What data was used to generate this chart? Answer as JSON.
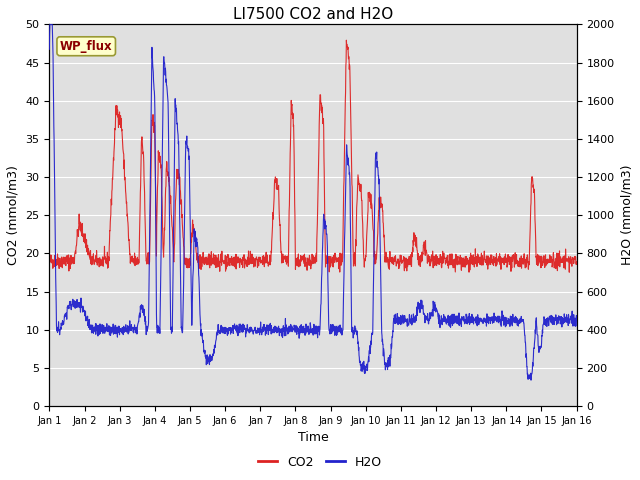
{
  "title": "LI7500 CO2 and H2O",
  "xlabel": "Time",
  "ylabel_left": "CO2 (mmol/m3)",
  "ylabel_right": "H2O (mmol/m3)",
  "ylim_left": [
    0,
    50
  ],
  "ylim_right": [
    0,
    2000
  ],
  "xlim": [
    0,
    15
  ],
  "xtick_labels": [
    "Jan 1",
    "Jan 2",
    "Jan 3",
    "Jan 4",
    "Jan 5",
    "Jan 6",
    "Jan 7",
    "Jan 8",
    "Jan 9",
    "Jan 10",
    "Jan 11",
    "Jan 12",
    "Jan 13",
    "Jan 14",
    "Jan 15",
    "Jan 16"
  ],
  "xtick_positions": [
    0,
    1,
    2,
    3,
    4,
    5,
    6,
    7,
    8,
    9,
    10,
    11,
    12,
    13,
    14,
    15
  ],
  "annotation_text": "WP_flux",
  "bg_color": "#e0e0e0",
  "co2_color": "#dd2222",
  "h2o_color": "#2222cc",
  "legend_co2": "CO2",
  "legend_h2o": "H2O",
  "n_points": 2000,
  "grid_color": "#ffffff",
  "fig_bg": "#ffffff"
}
